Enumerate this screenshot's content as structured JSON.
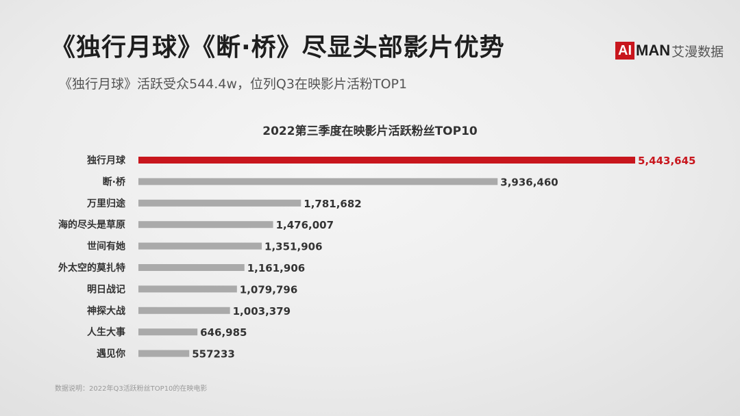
{
  "header": {
    "title": "《独行月球》《断·桥》尽显头部影片优势",
    "subtitle": "《独行月球》活跃受众544.4w，位列Q3在映影片活粉TOP1"
  },
  "logo": {
    "box_text": "AI",
    "bold_text": "MAN",
    "cn_text": "艾漫数据",
    "brand_color": "#c8161d"
  },
  "footnote": "数据说明：2022年Q3活跃粉丝TOP10的在映电影",
  "colors": {
    "highlight": "#c8161d",
    "bar": "#aaaaaa"
  },
  "chart_data": {
    "type": "bar",
    "orientation": "horizontal",
    "title": "2022第三季度在映影片活跃粉丝TOP10",
    "categories": [
      "独行月球",
      "断·桥",
      "万里归途",
      "海的尽头是草原",
      "世间有她",
      "外太空的莫扎特",
      "明日战记",
      "神探大战",
      "人生大事",
      "遇见你"
    ],
    "values": [
      5443645,
      3936460,
      1781682,
      1476007,
      1351906,
      1161906,
      1079796,
      1003379,
      646985,
      557233
    ],
    "value_labels": [
      "5,443,645",
      "3,936,460",
      "1,781,682",
      "1,476,007",
      "1,351,906",
      "1,161,906",
      "1,079,796",
      "1,003,379",
      "646,985",
      "557233"
    ],
    "highlight_index": 0,
    "grid": false,
    "legend": "none"
  }
}
